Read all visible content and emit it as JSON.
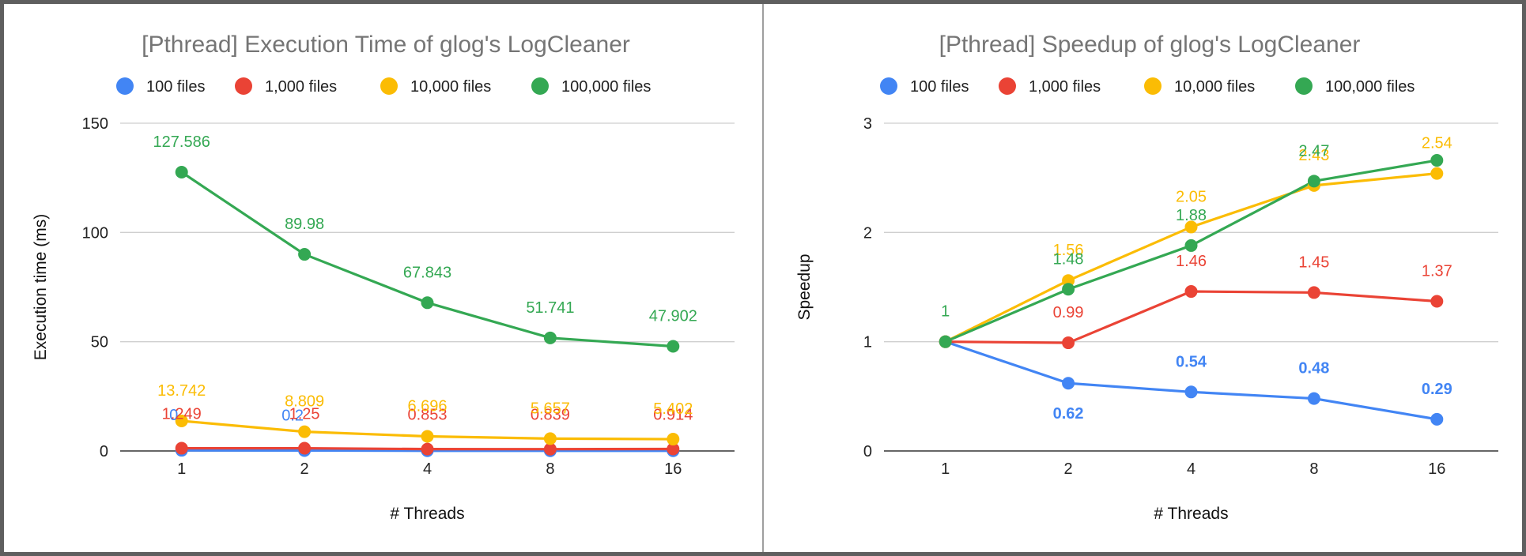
{
  "colors": {
    "100 files": "#4285F4",
    "1,000 files": "#EA4335",
    "10,000 files": "#FBBC04",
    "100,000 files": "#34A853"
  },
  "chart_data": [
    {
      "type": "line",
      "title": "[Pthread]  Execution Time of glog's LogCleaner",
      "xlabel": "# Threads",
      "ylabel": "Execution time (ms)",
      "categories": [
        "1",
        "2",
        "4",
        "8",
        "16"
      ],
      "ylim": [
        0,
        150
      ],
      "yticks": [
        0,
        50,
        100,
        150
      ],
      "grid": true,
      "legend": "top",
      "series": [
        {
          "name": "100 files",
          "values": [
            0.3,
            0.2,
            0.1,
            0.1,
            0.1
          ],
          "labels": [
            "0",
            "0.2",
            "",
            "",
            ""
          ],
          "label_bold": false
        },
        {
          "name": "1,000 files",
          "values": [
            1.249,
            1.25,
            0.853,
            0.839,
            0.914
          ],
          "labels": [
            "1.249",
            "1.25",
            "0.853",
            "0.839",
            "0.914"
          ],
          "label_bold": false
        },
        {
          "name": "10,000 files",
          "values": [
            13.742,
            8.809,
            6.696,
            5.657,
            5.402
          ],
          "labels": [
            "13.742",
            "8.809",
            "6.696",
            "5.657",
            "5.402"
          ],
          "label_bold": false
        },
        {
          "name": "100,000 files",
          "values": [
            127.586,
            89.98,
            67.843,
            51.741,
            47.902
          ],
          "labels": [
            "127.586",
            "89.98",
            "67.843",
            "51.741",
            "47.902"
          ],
          "label_bold": false
        }
      ]
    },
    {
      "type": "line",
      "title": "[Pthread]  Speedup of glog's LogCleaner",
      "xlabel": "# Threads",
      "ylabel": "Speedup",
      "categories": [
        "1",
        "2",
        "4",
        "8",
        "16"
      ],
      "ylim": [
        0,
        3
      ],
      "yticks": [
        0,
        1,
        2,
        3
      ],
      "grid": true,
      "legend": "top",
      "series": [
        {
          "name": "100 files",
          "values": [
            1,
            0.62,
            0.54,
            0.48,
            0.29
          ],
          "labels": [
            "",
            "0.62",
            "0.54",
            "0.48",
            "0.29"
          ],
          "label_bold": true
        },
        {
          "name": "1,000 files",
          "values": [
            1,
            0.99,
            1.46,
            1.45,
            1.37
          ],
          "labels": [
            "",
            "0.99",
            "1.46",
            "1.45",
            "1.37"
          ],
          "label_bold": false
        },
        {
          "name": "10,000 files",
          "values": [
            1,
            1.56,
            2.05,
            2.43,
            2.54
          ],
          "labels": [
            "",
            "1.56",
            "2.05",
            "2.43",
            "2.54"
          ],
          "label_bold": false
        },
        {
          "name": "100,000 files",
          "values": [
            1,
            1.48,
            1.88,
            2.47,
            2.66
          ],
          "labels": [
            "1",
            "1.48",
            "1.88",
            "2.47",
            ""
          ],
          "label_bold": false
        }
      ]
    }
  ]
}
